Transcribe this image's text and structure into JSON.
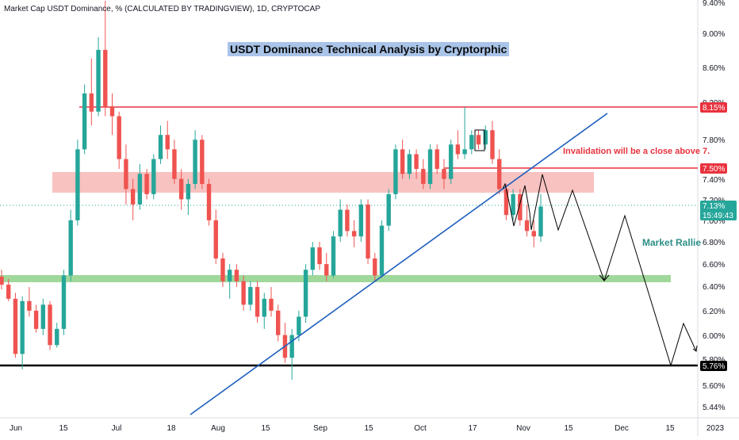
{
  "header": {
    "symbol_line": "Market Cap USDT Dominance, % (CALCULATED BY TRADINGVIEW), 1D, CRYPTOCAP"
  },
  "annotations": {
    "title": "USDT Dominance Technical Analysis by Cryptorphic",
    "invalidation": "Invalidation will be a close above 7.",
    "market_rally": "Market Rallie"
  },
  "price_labels": {
    "resistance_high": "8.15%",
    "resistance_low": "7.50%",
    "current_price": "7.13%",
    "countdown": "15:49:43",
    "support_bottom": "5.76%"
  },
  "colors": {
    "up_candle": "#26a69a",
    "down_candle": "#ef5350",
    "resistance_line": "#e8333f",
    "trendline": "#1f5fbf",
    "pink_zone": "#f6b3b0",
    "green_zone": "#8fd18a",
    "support_line": "#000000",
    "title_bg": "#a9c4e8"
  },
  "chart_data": {
    "type": "candlestick",
    "y_axis": {
      "unit": "%",
      "scale": "logarithmic",
      "ticks": [
        "9.40%",
        "9.00%",
        "8.60%",
        "8.20%",
        "7.80%",
        "7.40%",
        "7.20%",
        "7.00%",
        "6.80%",
        "6.60%",
        "6.40%",
        "6.20%",
        "6.00%",
        "5.80%",
        "5.60%",
        "5.44%"
      ]
    },
    "x_axis": {
      "ticks": [
        "Jun",
        "15",
        "Jul",
        "18",
        "Aug",
        "15",
        "Sep",
        "15",
        "Oct",
        "17",
        "Nov",
        "15",
        "Dec",
        "15",
        "2023"
      ]
    },
    "price_range": {
      "low": 5.62,
      "high": 9.45
    },
    "last_close": 7.13,
    "horizontal_levels": [
      {
        "value": 8.15,
        "label": "8.15%"
      },
      {
        "value": 7.5,
        "label": "7.50%"
      },
      {
        "value": 5.76,
        "label": "5.76%"
      }
    ],
    "zones": [
      {
        "name": "resistance zone",
        "from": 7.28,
        "to": 7.45
      },
      {
        "name": "support zone",
        "from": 6.45,
        "to": 6.49
      }
    ],
    "trendline": {
      "from_price": 5.44,
      "to_price": 8.05,
      "direction": "rising"
    },
    "projection_path": [
      7.4,
      6.9,
      7.3,
      6.45,
      7.05,
      5.76,
      6.08,
      5.88
    ],
    "grid": false,
    "candles": [
      {
        "o": 6.49,
        "h": 6.55,
        "l": 6.38,
        "c": 6.42
      },
      {
        "o": 6.42,
        "h": 6.47,
        "l": 6.28,
        "c": 6.3
      },
      {
        "o": 6.3,
        "h": 6.35,
        "l": 5.82,
        "c": 5.85
      },
      {
        "o": 5.85,
        "h": 6.32,
        "l": 5.73,
        "c": 6.28
      },
      {
        "o": 6.28,
        "h": 6.4,
        "l": 6.15,
        "c": 6.2
      },
      {
        "o": 6.2,
        "h": 6.25,
        "l": 6.02,
        "c": 6.05
      },
      {
        "o": 6.05,
        "h": 6.3,
        "l": 6.0,
        "c": 6.25
      },
      {
        "o": 6.25,
        "h": 6.28,
        "l": 5.88,
        "c": 5.92
      },
      {
        "o": 5.92,
        "h": 6.1,
        "l": 5.9,
        "c": 6.05
      },
      {
        "o": 6.05,
        "h": 6.55,
        "l": 6.0,
        "c": 6.5
      },
      {
        "o": 6.5,
        "h": 7.1,
        "l": 6.45,
        "c": 7.0
      },
      {
        "o": 7.0,
        "h": 7.8,
        "l": 6.95,
        "c": 7.7
      },
      {
        "o": 7.7,
        "h": 8.4,
        "l": 7.65,
        "c": 8.3
      },
      {
        "o": 8.3,
        "h": 8.7,
        "l": 7.95,
        "c": 8.1
      },
      {
        "o": 8.1,
        "h": 8.95,
        "l": 8.05,
        "c": 8.8
      },
      {
        "o": 8.8,
        "h": 9.4,
        "l": 8.05,
        "c": 8.15
      },
      {
        "o": 8.15,
        "h": 8.3,
        "l": 7.85,
        "c": 8.05
      },
      {
        "o": 8.05,
        "h": 8.1,
        "l": 7.5,
        "c": 7.6
      },
      {
        "o": 7.6,
        "h": 7.75,
        "l": 7.15,
        "c": 7.3
      },
      {
        "o": 7.3,
        "h": 7.4,
        "l": 7.0,
        "c": 7.15
      },
      {
        "o": 7.15,
        "h": 7.55,
        "l": 7.1,
        "c": 7.45
      },
      {
        "o": 7.45,
        "h": 7.5,
        "l": 7.2,
        "c": 7.25
      },
      {
        "o": 7.25,
        "h": 7.65,
        "l": 7.2,
        "c": 7.6
      },
      {
        "o": 7.6,
        "h": 7.95,
        "l": 7.55,
        "c": 7.85
      },
      {
        "o": 7.85,
        "h": 8.0,
        "l": 7.6,
        "c": 7.7
      },
      {
        "o": 7.7,
        "h": 7.8,
        "l": 7.35,
        "c": 7.4
      },
      {
        "o": 7.4,
        "h": 7.5,
        "l": 7.1,
        "c": 7.2
      },
      {
        "o": 7.2,
        "h": 7.4,
        "l": 7.05,
        "c": 7.35
      },
      {
        "o": 7.35,
        "h": 7.9,
        "l": 7.3,
        "c": 7.8
      },
      {
        "o": 7.8,
        "h": 7.85,
        "l": 7.3,
        "c": 7.35
      },
      {
        "o": 7.35,
        "h": 7.4,
        "l": 6.95,
        "c": 7.0
      },
      {
        "o": 7.0,
        "h": 7.1,
        "l": 6.6,
        "c": 6.65
      },
      {
        "o": 6.65,
        "h": 6.7,
        "l": 6.4,
        "c": 6.45
      },
      {
        "o": 6.45,
        "h": 6.6,
        "l": 6.3,
        "c": 6.55
      },
      {
        "o": 6.55,
        "h": 6.6,
        "l": 6.4,
        "c": 6.45
      },
      {
        "o": 6.45,
        "h": 6.5,
        "l": 6.2,
        "c": 6.25
      },
      {
        "o": 6.25,
        "h": 6.45,
        "l": 6.2,
        "c": 6.4
      },
      {
        "o": 6.4,
        "h": 6.45,
        "l": 6.1,
        "c": 6.15
      },
      {
        "o": 6.15,
        "h": 6.35,
        "l": 6.05,
        "c": 6.3
      },
      {
        "o": 6.3,
        "h": 6.4,
        "l": 6.15,
        "c": 6.2
      },
      {
        "o": 6.2,
        "h": 6.25,
        "l": 5.95,
        "c": 6.0
      },
      {
        "o": 6.0,
        "h": 6.1,
        "l": 5.78,
        "c": 5.82
      },
      {
        "o": 5.82,
        "h": 6.05,
        "l": 5.65,
        "c": 6.0
      },
      {
        "o": 6.0,
        "h": 6.2,
        "l": 5.95,
        "c": 6.15
      },
      {
        "o": 6.15,
        "h": 6.6,
        "l": 6.1,
        "c": 6.55
      },
      {
        "o": 6.55,
        "h": 6.8,
        "l": 6.5,
        "c": 6.75
      },
      {
        "o": 6.75,
        "h": 6.8,
        "l": 6.55,
        "c": 6.6
      },
      {
        "o": 6.6,
        "h": 6.7,
        "l": 6.45,
        "c": 6.5
      },
      {
        "o": 6.5,
        "h": 6.9,
        "l": 6.48,
        "c": 6.85
      },
      {
        "o": 6.85,
        "h": 7.2,
        "l": 6.8,
        "c": 7.1
      },
      {
        "o": 7.1,
        "h": 7.15,
        "l": 6.85,
        "c": 6.9
      },
      {
        "o": 6.9,
        "h": 7.0,
        "l": 6.75,
        "c": 6.85
      },
      {
        "o": 6.85,
        "h": 7.2,
        "l": 6.8,
        "c": 7.15
      },
      {
        "o": 7.15,
        "h": 7.2,
        "l": 6.6,
        "c": 6.65
      },
      {
        "o": 6.65,
        "h": 6.7,
        "l": 6.45,
        "c": 6.5
      },
      {
        "o": 6.5,
        "h": 7.0,
        "l": 6.48,
        "c": 6.95
      },
      {
        "o": 6.95,
        "h": 7.3,
        "l": 6.9,
        "c": 7.25
      },
      {
        "o": 7.25,
        "h": 7.75,
        "l": 7.2,
        "c": 7.7
      },
      {
        "o": 7.7,
        "h": 7.8,
        "l": 7.4,
        "c": 7.45
      },
      {
        "o": 7.45,
        "h": 7.7,
        "l": 7.4,
        "c": 7.65
      },
      {
        "o": 7.65,
        "h": 7.7,
        "l": 7.4,
        "c": 7.5
      },
      {
        "o": 7.5,
        "h": 7.6,
        "l": 7.3,
        "c": 7.35
      },
      {
        "o": 7.35,
        "h": 7.75,
        "l": 7.3,
        "c": 7.7
      },
      {
        "o": 7.7,
        "h": 7.75,
        "l": 7.45,
        "c": 7.5
      },
      {
        "o": 7.5,
        "h": 7.6,
        "l": 7.3,
        "c": 7.4
      },
      {
        "o": 7.4,
        "h": 7.8,
        "l": 7.35,
        "c": 7.75
      },
      {
        "o": 7.75,
        "h": 7.9,
        "l": 7.6,
        "c": 7.65
      },
      {
        "o": 7.65,
        "h": 8.15,
        "l": 7.6,
        "c": 7.7
      },
      {
        "o": 7.7,
        "h": 7.9,
        "l": 7.65,
        "c": 7.85
      },
      {
        "o": 7.85,
        "h": 7.9,
        "l": 7.7,
        "c": 7.75
      },
      {
        "o": 7.75,
        "h": 7.95,
        "l": 7.7,
        "c": 7.9
      },
      {
        "o": 7.9,
        "h": 8.0,
        "l": 7.55,
        "c": 7.6
      },
      {
        "o": 7.6,
        "h": 7.7,
        "l": 7.25,
        "c": 7.3
      },
      {
        "o": 7.3,
        "h": 7.35,
        "l": 7.0,
        "c": 7.05
      },
      {
        "o": 7.05,
        "h": 7.3,
        "l": 7.0,
        "c": 7.25
      },
      {
        "o": 7.25,
        "h": 7.3,
        "l": 6.95,
        "c": 7.0
      },
      {
        "o": 7.0,
        "h": 7.15,
        "l": 6.85,
        "c": 6.9
      },
      {
        "o": 6.9,
        "h": 7.0,
        "l": 6.75,
        "c": 6.85
      },
      {
        "o": 6.85,
        "h": 7.25,
        "l": 6.8,
        "c": 7.13
      }
    ]
  }
}
